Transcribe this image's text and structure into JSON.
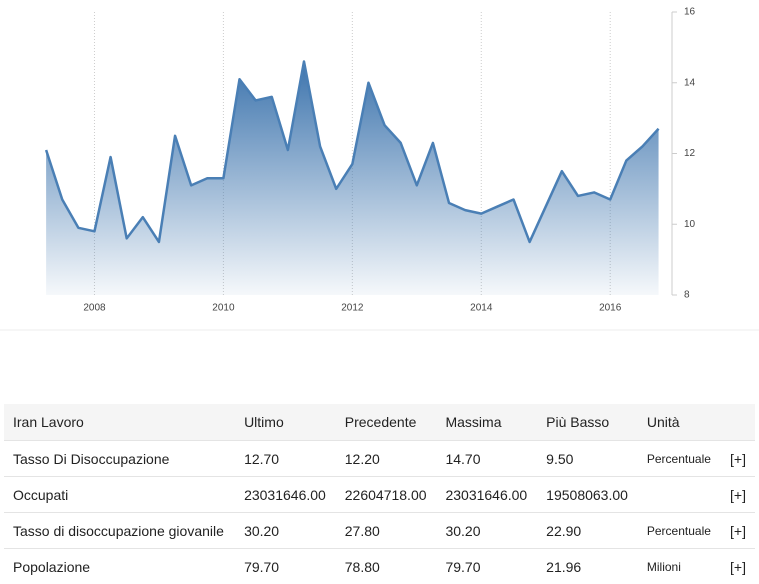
{
  "chart_data": {
    "type": "area",
    "x": [
      2007.25,
      2007.5,
      2007.75,
      2008,
      2008.25,
      2008.5,
      2008.75,
      2009,
      2009.25,
      2009.5,
      2009.75,
      2010,
      2010.25,
      2010.5,
      2010.75,
      2011,
      2011.25,
      2011.5,
      2011.75,
      2012,
      2012.25,
      2012.5,
      2012.75,
      2013,
      2013.25,
      2013.5,
      2013.75,
      2014,
      2014.25,
      2014.5,
      2014.75,
      2015,
      2015.25,
      2015.5,
      2015.75,
      2016,
      2016.25,
      2016.5,
      2016.75
    ],
    "values": [
      12.1,
      10.7,
      9.9,
      9.8,
      11.9,
      9.6,
      10.2,
      9.5,
      12.5,
      11.1,
      11.3,
      11.3,
      14.1,
      13.5,
      13.6,
      12.1,
      14.6,
      12.2,
      11.0,
      11.7,
      14.0,
      12.8,
      12.3,
      11.1,
      12.3,
      10.6,
      10.4,
      10.3,
      10.5,
      10.7,
      9.5,
      10.5,
      11.5,
      10.8,
      10.9,
      10.7,
      11.8,
      12.2,
      12.7
    ],
    "color": "#4a7fb5",
    "xlim": [
      2007.0,
      2016.85
    ],
    "xticks": [
      2008,
      2010,
      2012,
      2014,
      2016
    ],
    "ylim": [
      8,
      16
    ],
    "yticks": [
      8,
      10,
      12,
      14,
      16
    ],
    "grid": true
  },
  "table": {
    "header": [
      "Iran Lavoro",
      "Ultimo",
      "Precedente",
      "Massima",
      "Più Basso",
      "Unità"
    ],
    "rows": [
      [
        "Tasso Di Disoccupazione",
        "12.70",
        "12.20",
        "14.70",
        "9.50",
        "Percentuale",
        "[+]"
      ],
      [
        "Occupati",
        "23031646.00",
        "22604718.00",
        "23031646.00",
        "19508063.00",
        "",
        "[+]"
      ],
      [
        "Tasso di disoccupazione giovanile",
        "30.20",
        "27.80",
        "30.20",
        "22.90",
        "Percentuale",
        "[+]"
      ],
      [
        "Popolazione",
        "79.70",
        "78.80",
        "79.70",
        "21.96",
        "Milioni",
        "[+]"
      ]
    ]
  }
}
